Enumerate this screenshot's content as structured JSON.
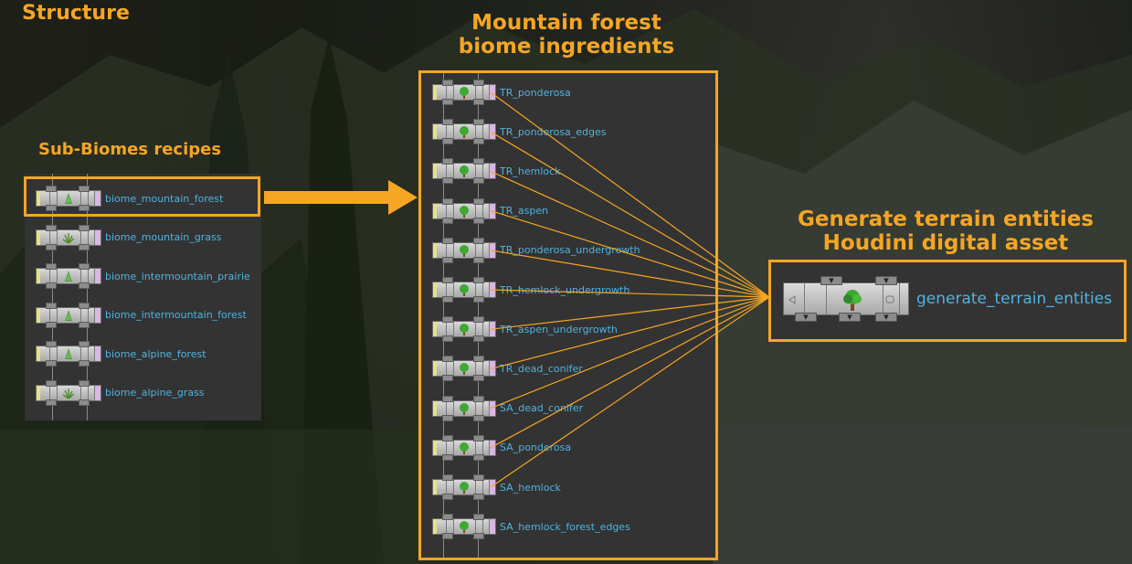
{
  "titles": {
    "structure": "Structure",
    "subbiomes": "Sub-Biomes recipes",
    "ingredients_line1": "Mountain forest",
    "ingredients_line2": "biome ingredients",
    "asset_line1": "Generate terrain entities",
    "asset_line2": "Houdini digital asset"
  },
  "subbiomes": [
    {
      "label": "biome_mountain_forest",
      "icon": "tree-stack-icon",
      "selected": true
    },
    {
      "label": "biome_mountain_grass",
      "icon": "grass-icon"
    },
    {
      "label": "biome_intermountain_prairie",
      "icon": "tree-stack-icon"
    },
    {
      "label": "biome_intermountain_forest",
      "icon": "tree-stack-icon"
    },
    {
      "label": "biome_alpine_forest",
      "icon": "tree-stack-icon"
    },
    {
      "label": "biome_alpine_grass",
      "icon": "grass-icon"
    }
  ],
  "ingredients": [
    {
      "label": "TR_ponderosa",
      "icon": "tree-icon"
    },
    {
      "label": "TR_ponderosa_edges",
      "icon": "tree-icon"
    },
    {
      "label": "TR_hemlock",
      "icon": "tree-icon"
    },
    {
      "label": "TR_aspen",
      "icon": "tree-icon"
    },
    {
      "label": "TR_ponderosa_undergrowth",
      "icon": "tree-icon"
    },
    {
      "label": "TR_hemlock_undergrowth",
      "icon": "tree-icon"
    },
    {
      "label": "TR_aspen_undergrowth",
      "icon": "tree-icon"
    },
    {
      "label": "TR_dead_conifer",
      "icon": "tree-icon"
    },
    {
      "label": "SA_dead_conifer",
      "icon": "tree-icon"
    },
    {
      "label": "SA_ponderosa",
      "icon": "tree-icon"
    },
    {
      "label": "SA_hemlock",
      "icon": "tree-icon"
    },
    {
      "label": "SA_hemlock_forest_edges",
      "icon": "tree-icon"
    }
  ],
  "asset": {
    "label": "generate_terrain_entities",
    "icon": "tree-icon"
  },
  "colors": {
    "accent": "#f5a623",
    "link": "#4fb3e0",
    "panel": "#333333"
  }
}
